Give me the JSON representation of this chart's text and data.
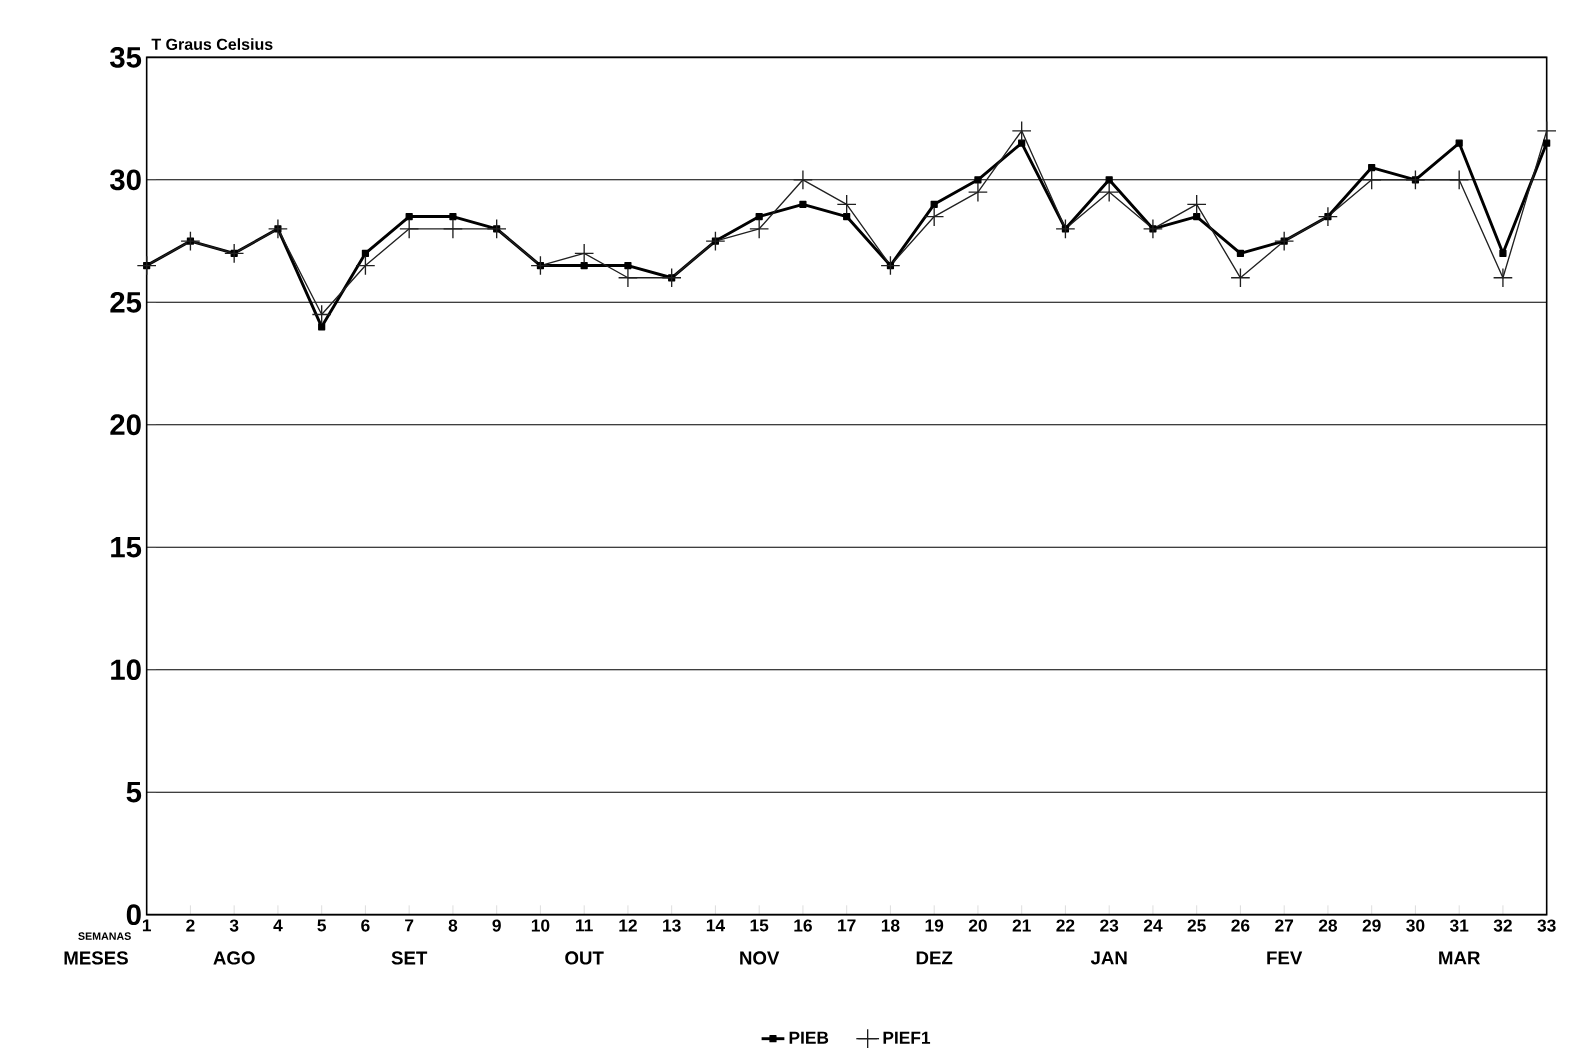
{
  "chart_data": {
    "type": "line",
    "ylabel": "T Graus Celsius",
    "xlabel": "SEMANAS",
    "annotations": [
      "MESES",
      "AGO",
      "SET",
      "OUT",
      "NOV",
      "DEZ",
      "JAN",
      "FEV",
      "MAR"
    ],
    "categories": [
      "1",
      "2",
      "3",
      "4",
      "5",
      "6",
      "7",
      "8",
      "9",
      "10",
      "11",
      "12",
      "13",
      "14",
      "15",
      "16",
      "17",
      "18",
      "19",
      "20",
      "21",
      "22",
      "23",
      "24",
      "25",
      "26",
      "27",
      "28",
      "29",
      "30",
      "31",
      "32",
      "33"
    ],
    "series": [
      {
        "name": "PIEB",
        "color": "#000000",
        "marker": "square",
        "values": [
          26.5,
          27.5,
          27,
          28,
          24,
          27,
          28.5,
          28.5,
          28,
          26.5,
          26.5,
          26.5,
          26,
          27.5,
          28.5,
          29,
          28.5,
          26.5,
          29,
          30,
          31.5,
          28,
          30,
          28,
          28.5,
          27,
          27.5,
          28.5,
          30.5,
          30,
          31.5,
          27,
          31.5
        ]
      },
      {
        "name": "PIEF1",
        "color": "#202020",
        "marker": "cross",
        "values": [
          26.5,
          27.5,
          27,
          28,
          24.5,
          26.5,
          28,
          28,
          28,
          26.5,
          27,
          26,
          26,
          27.5,
          28,
          30,
          29,
          26.5,
          28.5,
          29.5,
          32,
          28,
          29.5,
          28,
          29,
          26,
          27.5,
          28.5,
          30,
          30,
          30,
          26,
          32
        ]
      }
    ],
    "ylim": [
      0,
      35
    ],
    "yticks": [
      0,
      5,
      10,
      15,
      20,
      25,
      30,
      35
    ],
    "grid": "y",
    "legend": "bottom"
  }
}
